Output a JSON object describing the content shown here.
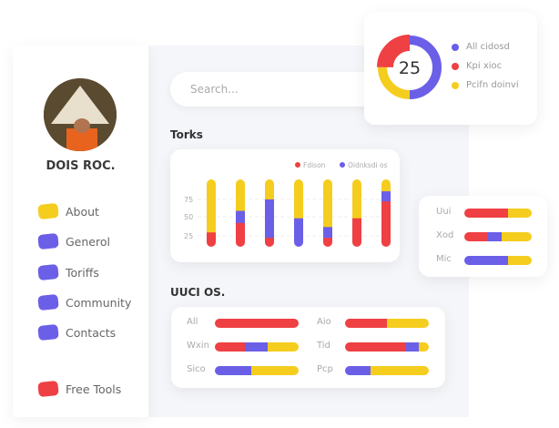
{
  "colors": {
    "red": "#ef4044",
    "purple": "#6b5fe8",
    "yellow": "#f5cd1f"
  },
  "profile": {
    "name": "DOIS ROC."
  },
  "sidebar": {
    "items": [
      {
        "label": "About",
        "color": "#f5cd1f"
      },
      {
        "label": "Generol",
        "color": "#6b5fe8"
      },
      {
        "label": "Toriffs",
        "color": "#6b5fe8"
      },
      {
        "label": "Community",
        "color": "#6b5fe8"
      },
      {
        "label": "Contacts",
        "color": "#6b5fe8"
      },
      {
        "label": "Free Tools",
        "color": "#ef4044"
      }
    ]
  },
  "search": {
    "placeholder": "Search..."
  },
  "torks": {
    "title": "Torks"
  },
  "uuci": {
    "title": "UUCI OS."
  },
  "chart_data": [
    {
      "type": "bar",
      "stacked": true,
      "legend": [
        "Fdison",
        "Oidnksdi os"
      ],
      "yticks": [
        "75",
        "50",
        "25"
      ],
      "segments_order": [
        "red",
        "purple",
        "yellow"
      ],
      "bars": [
        [
          22,
          0,
          78
        ],
        [
          36,
          18,
          46
        ],
        [
          14,
          57,
          29
        ],
        [
          0,
          43,
          57
        ],
        [
          14,
          16,
          70
        ],
        [
          43,
          0,
          57
        ],
        [
          68,
          15,
          17
        ]
      ]
    },
    {
      "type": "pie",
      "center_value": "25",
      "legend": [
        "All cidosd",
        "Kpi xioc",
        "Pcifn doinvi"
      ],
      "values": [
        50,
        25,
        25
      ],
      "colors": [
        "#6b5fe8",
        "#ef4044",
        "#f5cd1f"
      ]
    },
    {
      "type": "bar",
      "orientation": "horizontal",
      "stacked": true,
      "rows": [
        {
          "label": "Uui",
          "values": [
            65,
            0,
            35
          ]
        },
        {
          "label": "Xod",
          "values": [
            35,
            21,
            44
          ]
        },
        {
          "label": "Mic",
          "values": [
            0,
            65,
            35
          ]
        }
      ]
    },
    {
      "type": "bar",
      "orientation": "horizontal",
      "stacked": true,
      "rows": [
        {
          "label": "All",
          "values": [
            100,
            0,
            0
          ]
        },
        {
          "label": "Aio",
          "values": [
            50,
            0,
            50
          ]
        },
        {
          "label": "Wxin",
          "values": [
            36,
            27,
            37
          ]
        },
        {
          "label": "Tid",
          "values": [
            73,
            15,
            12
          ]
        },
        {
          "label": "Sico",
          "values": [
            0,
            43,
            57
          ]
        },
        {
          "label": "Pcp",
          "values": [
            0,
            30,
            70
          ]
        }
      ]
    }
  ]
}
